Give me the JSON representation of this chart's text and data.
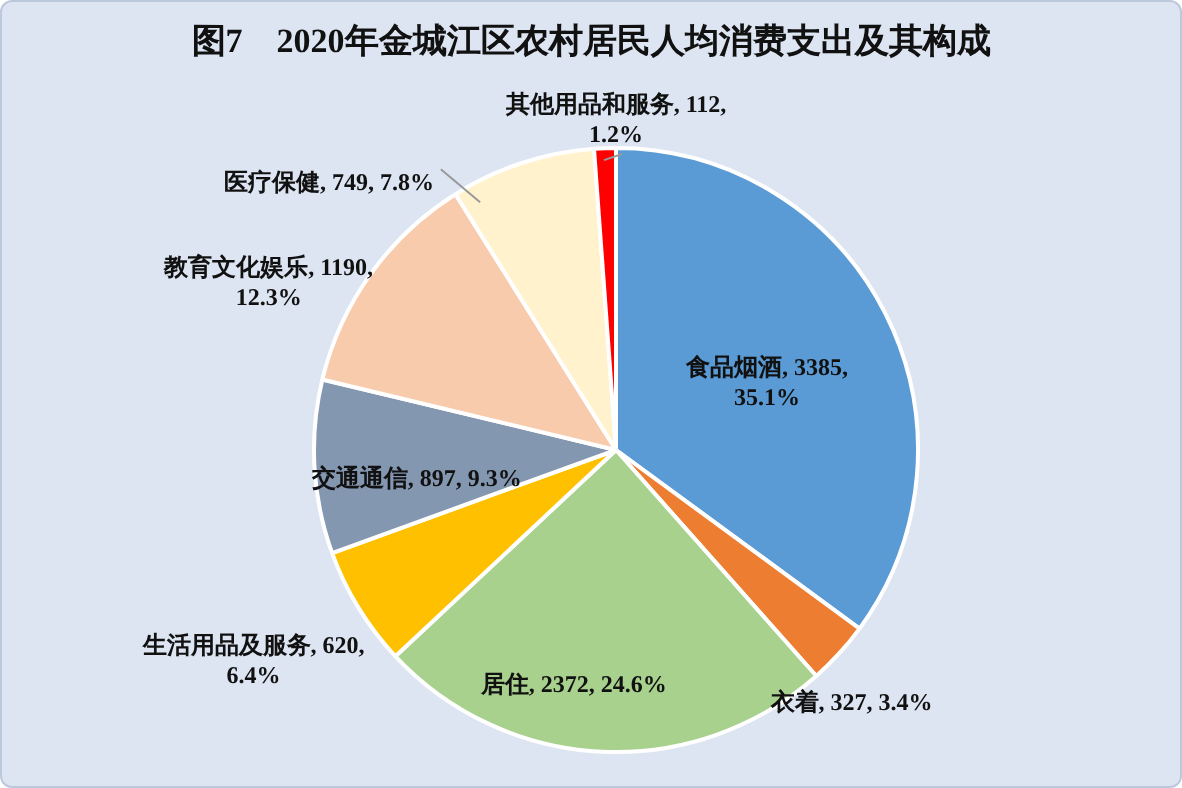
{
  "chart_data": {
    "type": "pie",
    "title": "图7　2020年金城江区农村居民人均消费支出及其构成",
    "categories": [
      "食品烟酒",
      "衣着",
      "居住",
      "生活用品及服务",
      "交通通信",
      "教育文化娱乐",
      "医疗保健",
      "其他用品和服务"
    ],
    "values": [
      3385,
      327,
      2372,
      620,
      897,
      1190,
      749,
      112
    ],
    "value_labels": [
      "3385, 35.1%",
      "327, 3.4%",
      "2372, 24.6%",
      "620, 6.4%",
      "897, 9.3%",
      "1190, 12.3%",
      "749, 7.8%",
      "112, 1.2%"
    ],
    "colors": [
      "#5b9bd5",
      "#ed7d31",
      "#a9d18e",
      "#ffc000",
      "#8497b0",
      "#f8cbad",
      "#fff2cc",
      "#ff0000"
    ],
    "legend": false
  }
}
